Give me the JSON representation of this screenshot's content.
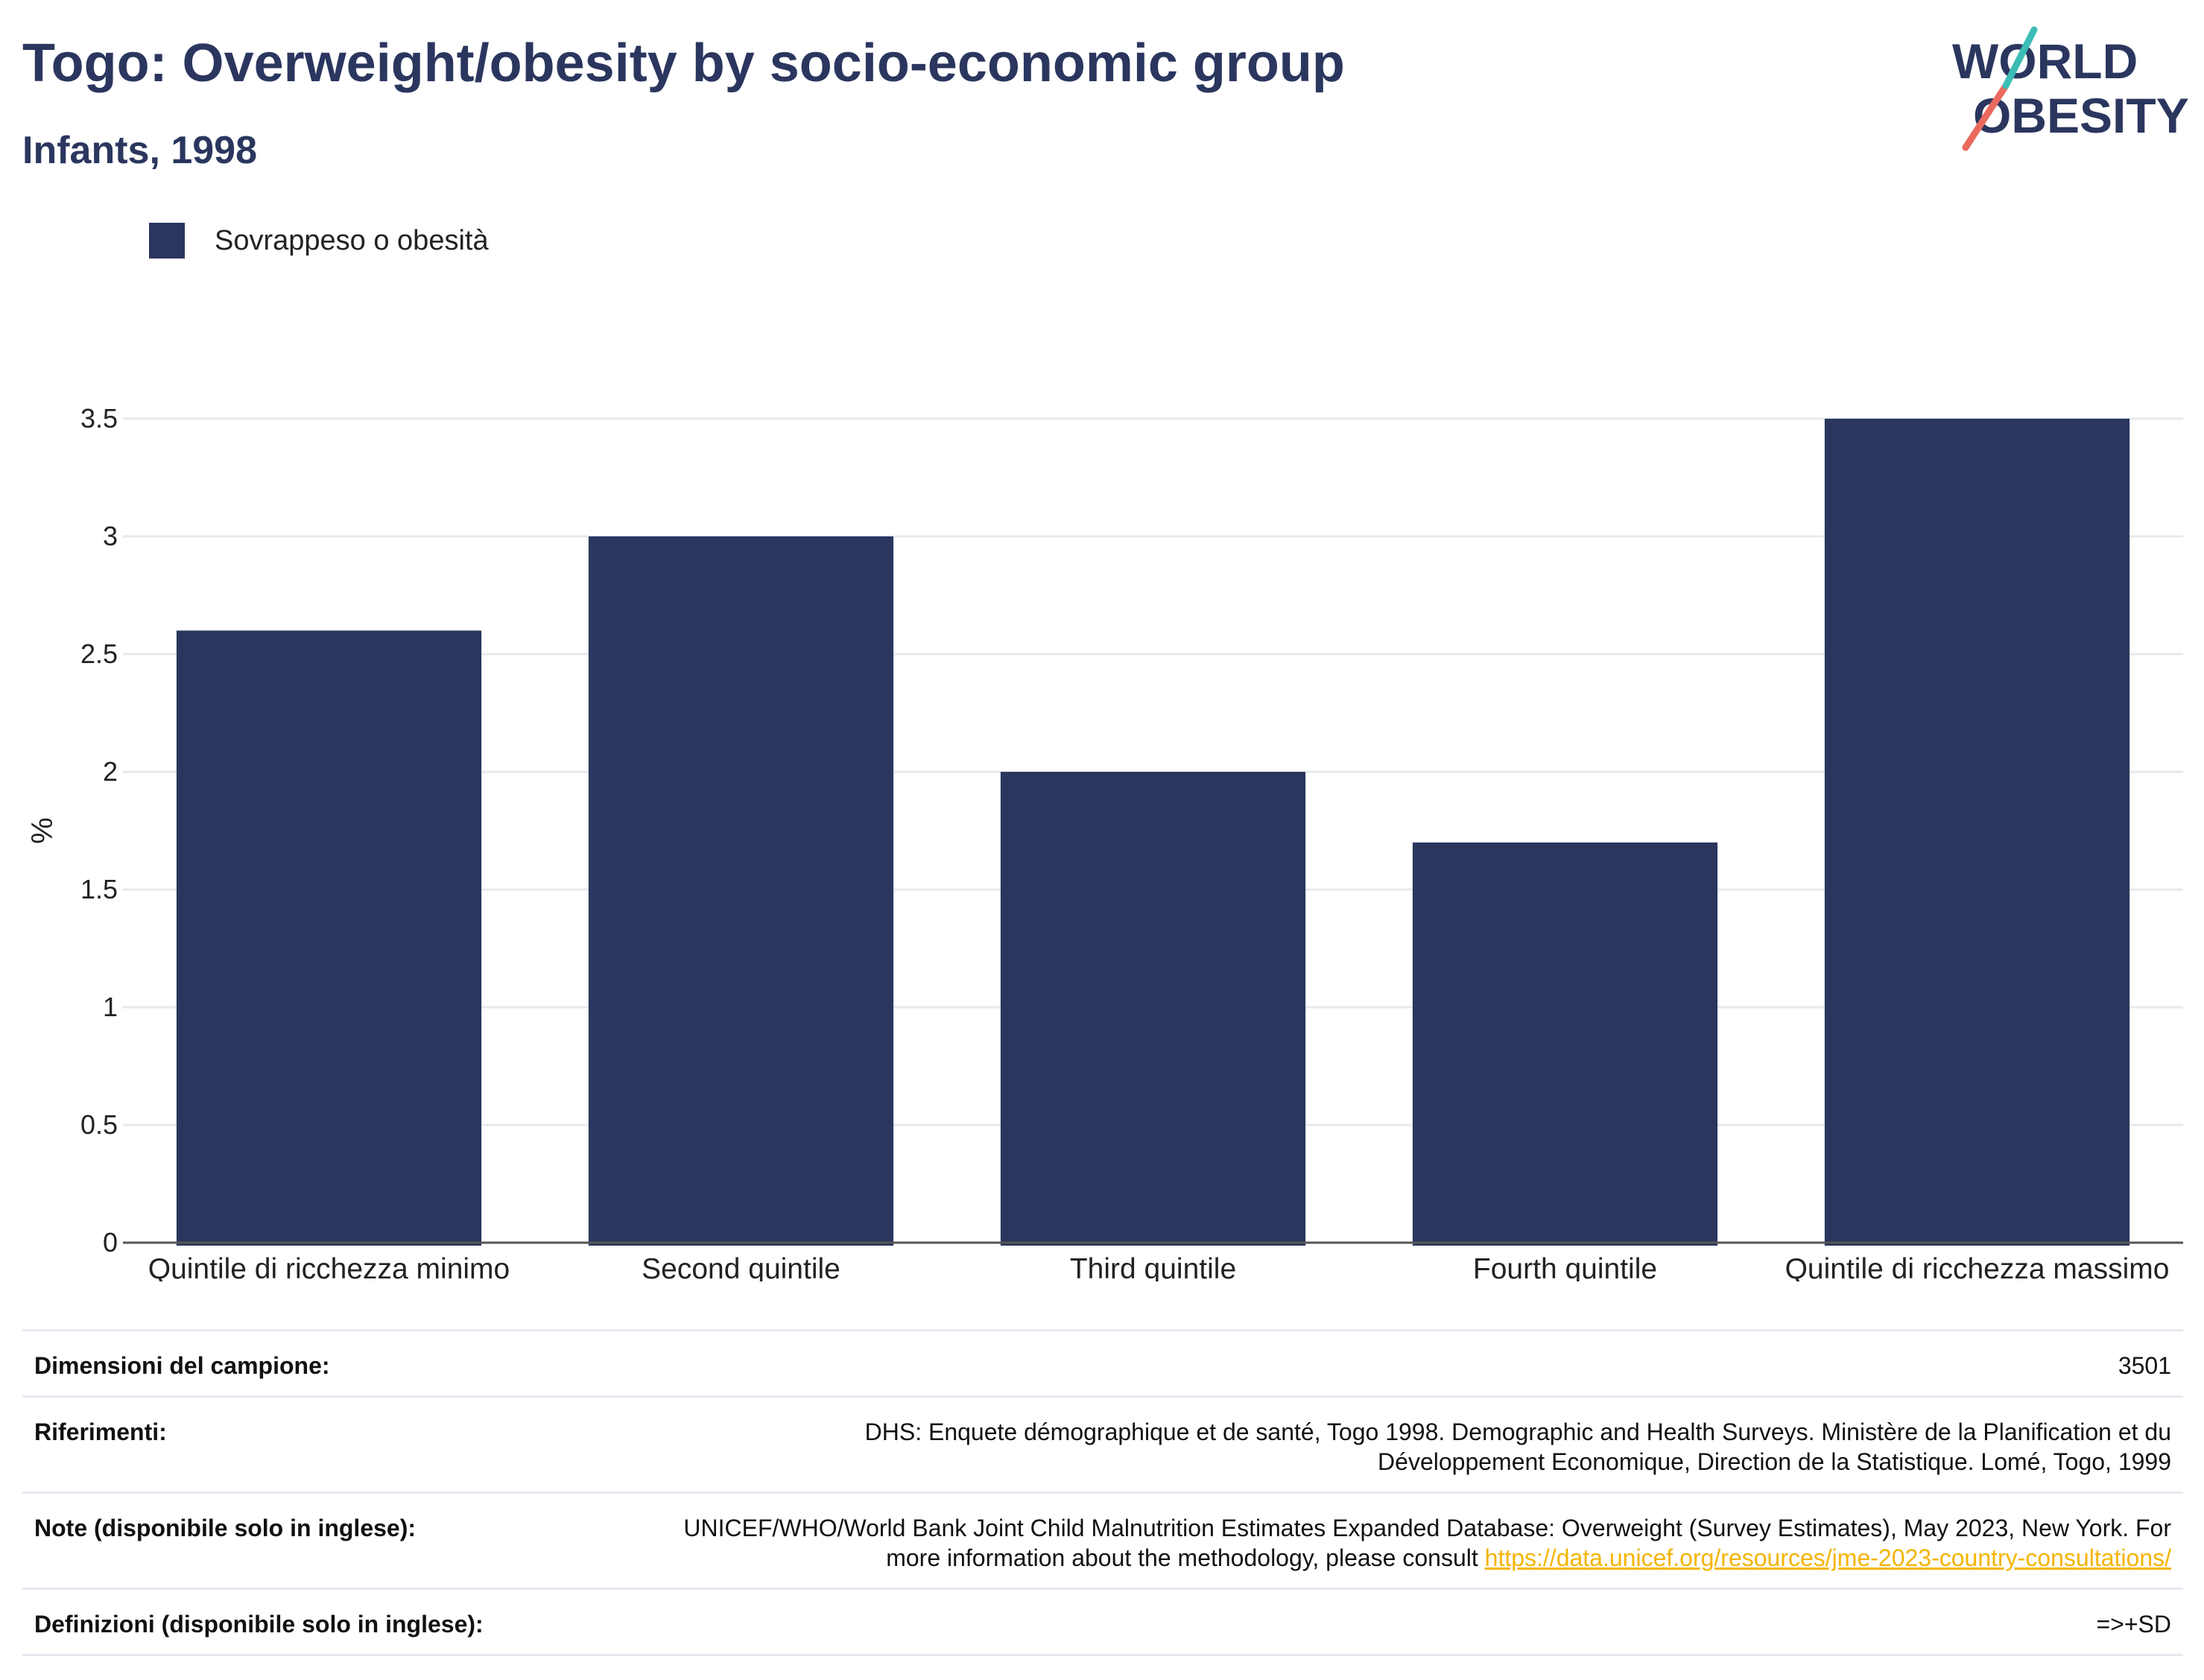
{
  "header": {
    "title": "Togo: Overweight/obesity by socio-economic group",
    "subtitle": "Infants, 1998"
  },
  "logo": {
    "line1": "WORLD",
    "line2": "OBESITY"
  },
  "legend": {
    "label": "Sovrappeso o obesità",
    "color": "#2b365f"
  },
  "chart_data": {
    "type": "bar",
    "categories": [
      "Quintile di ricchezza minimo",
      "Second quintile",
      "Third quintile",
      "Fourth quintile",
      "Quintile di ricchezza massimo"
    ],
    "series": [
      {
        "name": "Sovrappeso o obesità",
        "values": [
          2.6,
          3.0,
          2.0,
          1.7,
          3.5
        ],
        "color": "#2b365f"
      }
    ],
    "ylabel": "%",
    "xlabel": "",
    "ylim": [
      0,
      3.5
    ],
    "yticks": [
      "0",
      "0.5",
      "1",
      "1.5",
      "2",
      "2.5",
      "3",
      "3.5"
    ],
    "grid": true,
    "legend_position": "top-left"
  },
  "footer": {
    "sample_size_label": "Dimensioni del campione:",
    "sample_size_value": "3501",
    "references_label": "Riferimenti:",
    "references_value": "DHS: Enquete démographique et de santé, Togo 1998. Demographic and Health Surveys. Ministère de la Planification et du Développement Economique, Direction de la Statistique. Lomé, Togo, 1999",
    "notes_label": "Note (disponibile solo in inglese):",
    "notes_value": "UNICEF/WHO/World Bank Joint Child Malnutrition Estimates Expanded Database: Overweight (Survey Estimates), May 2023, New York. For more information about the methodology, please consult",
    "notes_link": "https://data.unicef.org/resources/jme-2023-country-consultations/",
    "definitions_label": "Definizioni (disponibile solo in inglese):",
    "definitions_value": "=>+SD"
  }
}
